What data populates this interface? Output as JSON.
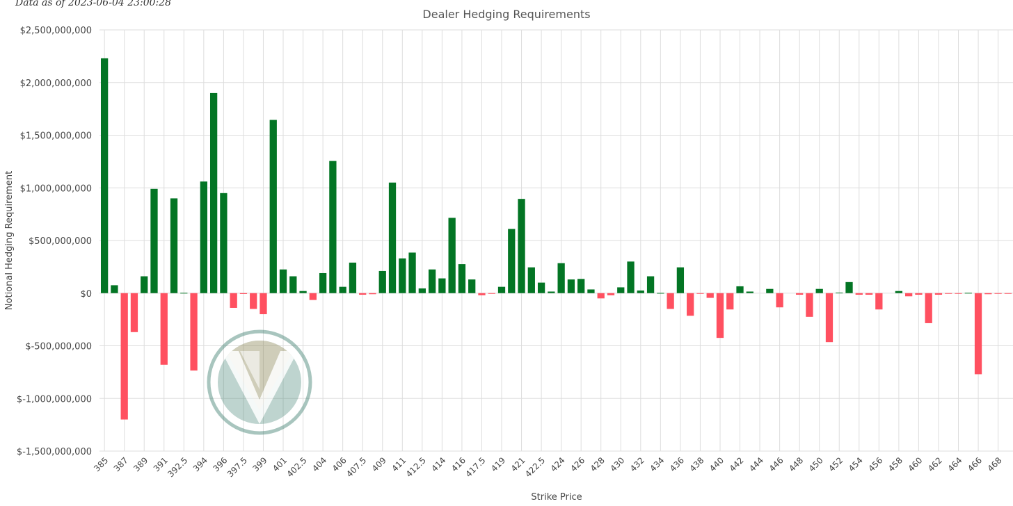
{
  "header": {
    "timestamp": "Data as of 2023-06-04 23:00:28"
  },
  "chart_data": {
    "type": "bar",
    "title": "Dealer Hedging Requirements",
    "xlabel": "Strike Price",
    "ylabel": "Notional Hedging Requirement",
    "ylim": [
      -1500000000,
      2500000000
    ],
    "yticks": [
      2500000000,
      2000000000,
      1500000000,
      1000000000,
      500000000,
      0,
      -500000000,
      -1000000000,
      -1500000000
    ],
    "ytick_labels": [
      "$2,500,000,000",
      "$2,000,000,000",
      "$1,500,000,000",
      "$1,000,000,000",
      "$500,000,000",
      "$0",
      "$-500,000,000",
      "$-1,000,000,000",
      "$-1,500,000,000"
    ],
    "categories": [
      "385",
      "386",
      "387",
      "388",
      "389",
      "390",
      "391",
      "392",
      "392.5",
      "393",
      "394",
      "395",
      "396",
      "397",
      "397.5",
      "398",
      "399",
      "400",
      "401",
      "402",
      "402.5",
      "403",
      "404",
      "405",
      "406",
      "407",
      "407.5",
      "408",
      "409",
      "410",
      "411",
      "412",
      "412.5",
      "413",
      "414",
      "415",
      "416",
      "417",
      "417.5",
      "418",
      "419",
      "420",
      "421",
      "422",
      "422.5",
      "423",
      "424",
      "425",
      "426",
      "427",
      "428",
      "429",
      "430",
      "431",
      "432",
      "433",
      "434",
      "435",
      "436",
      "437",
      "438",
      "439",
      "440",
      "441",
      "442",
      "443",
      "444",
      "445",
      "446",
      "447",
      "448",
      "449",
      "450",
      "451",
      "452",
      "453",
      "454",
      "455",
      "456",
      "457",
      "458",
      "459",
      "460",
      "461",
      "462",
      "463",
      "464",
      "465",
      "466",
      "467",
      "468",
      "469"
    ],
    "xtick_labels": [
      "385",
      "387",
      "389",
      "391",
      "392.5",
      "394",
      "396",
      "397.5",
      "399",
      "401",
      "402.5",
      "404",
      "406",
      "407.5",
      "409",
      "411",
      "412.5",
      "414",
      "416",
      "417.5",
      "419",
      "421",
      "422.5",
      "424",
      "426",
      "428",
      "430",
      "432",
      "434",
      "436",
      "438",
      "440",
      "442",
      "444",
      "446",
      "448",
      "450",
      "452",
      "454",
      "456",
      "458",
      "460",
      "462",
      "464",
      "466",
      "468"
    ],
    "values": [
      2230000000,
      75000000,
      -1200000000,
      -370000000,
      160000000,
      990000000,
      -680000000,
      900000000,
      3000000,
      -735000000,
      1060000000,
      1900000000,
      950000000,
      -140000000,
      -8000000,
      -150000000,
      -200000000,
      1645000000,
      225000000,
      160000000,
      20000000,
      -65000000,
      190000000,
      1255000000,
      60000000,
      290000000,
      -15000000,
      -10000000,
      210000000,
      1050000000,
      330000000,
      385000000,
      45000000,
      225000000,
      140000000,
      715000000,
      275000000,
      130000000,
      -20000000,
      -5000000,
      60000000,
      610000000,
      895000000,
      245000000,
      100000000,
      15000000,
      285000000,
      130000000,
      135000000,
      35000000,
      -50000000,
      -20000000,
      55000000,
      300000000,
      25000000,
      160000000,
      2000000,
      -150000000,
      245000000,
      -215000000,
      -3000000,
      -45000000,
      -425000000,
      -155000000,
      65000000,
      15000000,
      0,
      40000000,
      -135000000,
      0,
      -15000000,
      -225000000,
      40000000,
      -465000000,
      5000000,
      105000000,
      -15000000,
      -15000000,
      -155000000,
      0,
      20000000,
      -30000000,
      -15000000,
      -285000000,
      -15000000,
      -5000000,
      -3000000,
      3000000,
      -770000000,
      -10000000,
      -5000000,
      -5000000
    ],
    "colors": {
      "positive": "#037524",
      "negative": "#ff5060",
      "grid": "#dddddd",
      "axis_text": "#444444",
      "title": "#555555"
    },
    "grid": true,
    "legend": "none",
    "watermark": "logo"
  }
}
